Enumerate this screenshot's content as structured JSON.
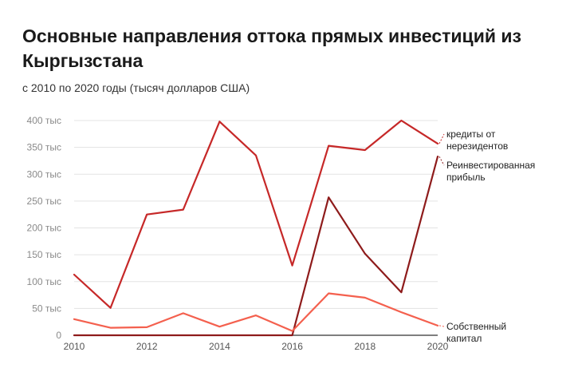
{
  "chart_data": {
    "type": "line",
    "title": "Основные направления оттока прямых инвестиций из Кыргызстана",
    "subtitle": "с 2010 по 2020 годы (тысяч долларов США)",
    "x": [
      2010,
      2011,
      2012,
      2013,
      2014,
      2015,
      2016,
      2017,
      2018,
      2019,
      2020
    ],
    "x_ticks": [
      "2010",
      "2012",
      "2014",
      "2016",
      "2018",
      "2020"
    ],
    "y_ticks": [
      "0",
      "50 тыс",
      "100 тыс",
      "150 тыс",
      "200 тыс",
      "250 тыс",
      "300 тыс",
      "350 тыс",
      "400 тыс"
    ],
    "ylim": [
      0,
      400000
    ],
    "grid": true,
    "legend": "inline-right",
    "series": [
      {
        "name": "кредиты от нерезидентов",
        "label_lines": [
          "кредиты от",
          "нерезидентов"
        ],
        "color": "#c62828",
        "values": [
          113000,
          51000,
          225000,
          234000,
          398000,
          335000,
          130000,
          353000,
          345000,
          400000,
          357000
        ]
      },
      {
        "name": "Реинвестированная прибыль",
        "label_lines": [
          "Реинвестированная",
          "прибыль"
        ],
        "color": "#8e1b1b",
        "values": [
          0,
          0,
          0,
          0,
          0,
          0,
          0,
          257000,
          152000,
          80000,
          333000
        ]
      },
      {
        "name": "Собственный капитал",
        "label_lines": [
          "Собственный",
          "капитал"
        ],
        "color": "#f4604e",
        "values": [
          30000,
          14000,
          15000,
          41000,
          16000,
          37000,
          8000,
          78000,
          70000,
          43000,
          18000
        ]
      }
    ]
  }
}
